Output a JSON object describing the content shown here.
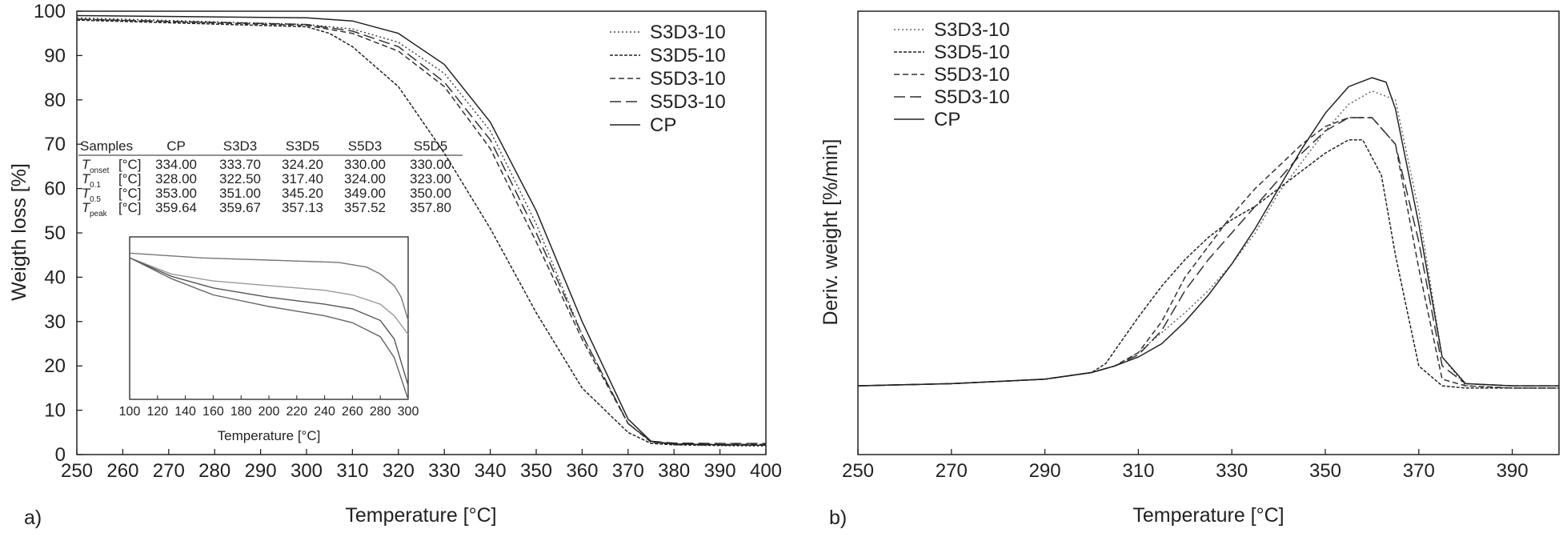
{
  "chart_data": [
    {
      "panel_label": "a)",
      "type": "line",
      "xlabel": "Temperature [°C]",
      "ylabel": "Weigth loss [%]",
      "xlim": [
        250,
        400
      ],
      "ylim": [
        0,
        100
      ],
      "xticks": [
        250,
        260,
        270,
        280,
        290,
        300,
        310,
        320,
        330,
        340,
        350,
        360,
        370,
        380,
        390,
        400
      ],
      "yticks": [
        0,
        10,
        20,
        30,
        40,
        50,
        60,
        70,
        80,
        90,
        100
      ],
      "legend": {
        "placement": "top-right"
      },
      "series": [
        {
          "name": "S3D3-10",
          "style": "dotted",
          "color": "#444444",
          "x": [
            250,
            300,
            310,
            320,
            330,
            340,
            350,
            360,
            370,
            375,
            380,
            390,
            400
          ],
          "y": [
            98.5,
            97,
            96,
            93,
            86,
            73,
            52,
            27,
            7,
            2.8,
            2.2,
            2.0,
            1.9
          ]
        },
        {
          "name": "S3D5-10",
          "style": "dense-dash",
          "color": "#222222",
          "x": [
            250,
            300,
            305,
            310,
            320,
            330,
            340,
            350,
            360,
            370,
            375,
            380,
            390,
            400
          ],
          "y": [
            98,
            96.5,
            95,
            92,
            83,
            68,
            51,
            32,
            15,
            5,
            2.5,
            2.2,
            2.1,
            2.1
          ]
        },
        {
          "name": "S5D3-10",
          "style": "short-dash",
          "color": "#333333",
          "x": [
            250,
            300,
            310,
            320,
            330,
            340,
            350,
            360,
            370,
            375,
            380,
            390,
            400
          ],
          "y": [
            98.2,
            96.8,
            95,
            91,
            83,
            69,
            48,
            26,
            7,
            2.8,
            2.4,
            2.3,
            2.3
          ]
        },
        {
          "name": "S5D3-10",
          "style": "long-dash",
          "color": "#333333",
          "x": [
            250,
            300,
            310,
            320,
            330,
            340,
            350,
            360,
            370,
            375,
            380,
            390,
            400
          ],
          "y": [
            98.2,
            97,
            95.5,
            92,
            84,
            71,
            50,
            27,
            7,
            3,
            2.6,
            2.5,
            2.5
          ]
        },
        {
          "name": "CP",
          "style": "solid",
          "color": "#222222",
          "x": [
            250,
            300,
            310,
            320,
            330,
            340,
            350,
            360,
            370,
            375,
            380,
            390,
            400
          ],
          "y": [
            99,
            98.5,
            97.8,
            95,
            88,
            75,
            55,
            30,
            8,
            3,
            2.4,
            2.2,
            2.1
          ]
        }
      ],
      "table": {
        "headers": [
          "Samples",
          "CP",
          "S3D3",
          "S3D5",
          "S5D3",
          "S5D5"
        ],
        "rows": [
          {
            "symbol": "T",
            "sub": "onset",
            "unit": "[°C]",
            "values": [
              "334.00",
              "333.70",
              "324.20",
              "330.00",
              "330.00"
            ]
          },
          {
            "symbol": "T",
            "sub": "0.1",
            "unit": "[°C]",
            "values": [
              "328.00",
              "322.50",
              "317.40",
              "324.00",
              "323.00"
            ]
          },
          {
            "symbol": "T",
            "sub": "0.5",
            "unit": "[°C]",
            "values": [
              "353.00",
              "351.00",
              "345.20",
              "349.00",
              "350.00"
            ]
          },
          {
            "symbol": "T",
            "sub": "peak",
            "unit": "[°C]",
            "values": [
              "359.64",
              "359.67",
              "357.13",
              "357.52",
              "357.80"
            ]
          }
        ]
      },
      "inset": {
        "xlabel": "Temperature [°C]",
        "xlim": [
          100,
          300
        ],
        "xticks": [
          100,
          120,
          140,
          160,
          180,
          200,
          220,
          240,
          260,
          280,
          300
        ],
        "ylim": [
          15,
          50
        ],
        "series": [
          {
            "style": "solid",
            "color": "#777777",
            "x": [
              100,
              150,
              200,
              250,
              270,
              280,
              290,
              295,
              300
            ],
            "y": [
              46.5,
              45.5,
              45,
              44.5,
              43.5,
              42,
              39.5,
              37,
              32
            ]
          },
          {
            "style": "solid",
            "color": "#999999",
            "x": [
              100,
              130,
              160,
              200,
              240,
              260,
              280,
              290,
              300
            ],
            "y": [
              45.5,
              42,
              40.5,
              39.5,
              38.5,
              37.5,
              35.5,
              33,
              29
            ]
          },
          {
            "style": "solid",
            "color": "#555555",
            "x": [
              100,
              130,
              160,
              200,
              240,
              260,
              280,
              290,
              300
            ],
            "y": [
              45.5,
              41.5,
              39,
              37,
              35.5,
              34.5,
              32,
              28,
              18
            ]
          },
          {
            "style": "solid",
            "color": "#666666",
            "x": [
              100,
              130,
              160,
              200,
              240,
              260,
              280,
              290,
              300
            ],
            "y": [
              45.5,
              41,
              37.5,
              35,
              33,
              31.5,
              28.5,
              24,
              15
            ]
          }
        ]
      }
    },
    {
      "panel_label": "b)",
      "type": "line",
      "xlabel": "Temperature [°C]",
      "ylabel": "Deriv. weight [%/min]",
      "xlim": [
        250,
        400
      ],
      "ylim": [
        0,
        1
      ],
      "xticks": [
        250,
        270,
        290,
        310,
        330,
        350,
        370,
        390
      ],
      "legend": {
        "placement": "top-left"
      },
      "series": [
        {
          "name": "S3D3-10",
          "style": "dotted",
          "color": "#666666",
          "x": [
            250,
            270,
            290,
            300,
            305,
            310,
            315,
            320,
            325,
            330,
            335,
            340,
            345,
            350,
            355,
            360,
            365,
            370,
            375,
            380,
            390,
            400
          ],
          "y": [
            0.155,
            0.16,
            0.17,
            0.185,
            0.2,
            0.23,
            0.275,
            0.32,
            0.37,
            0.43,
            0.5,
            0.59,
            0.66,
            0.73,
            0.79,
            0.82,
            0.8,
            0.55,
            0.22,
            0.155,
            0.15,
            0.15
          ]
        },
        {
          "name": "S3D5-10",
          "style": "dense-dash",
          "color": "#222222",
          "x": [
            250,
            270,
            290,
            300,
            303,
            306,
            310,
            315,
            320,
            325,
            330,
            335,
            340,
            345,
            350,
            355,
            358,
            362,
            365,
            370,
            375,
            380,
            390,
            400
          ],
          "y": [
            0.155,
            0.16,
            0.17,
            0.185,
            0.205,
            0.25,
            0.31,
            0.38,
            0.44,
            0.49,
            0.53,
            0.56,
            0.6,
            0.64,
            0.68,
            0.71,
            0.71,
            0.63,
            0.45,
            0.2,
            0.155,
            0.15,
            0.15,
            0.15
          ]
        },
        {
          "name": "S5D3-10",
          "style": "short-dash",
          "color": "#333333",
          "x": [
            250,
            270,
            290,
            300,
            305,
            310,
            315,
            320,
            325,
            330,
            335,
            340,
            345,
            350,
            355,
            360,
            365,
            370,
            375,
            380,
            390,
            400
          ],
          "y": [
            0.155,
            0.16,
            0.17,
            0.185,
            0.2,
            0.23,
            0.3,
            0.4,
            0.47,
            0.54,
            0.6,
            0.65,
            0.7,
            0.74,
            0.76,
            0.76,
            0.7,
            0.42,
            0.17,
            0.155,
            0.15,
            0.15
          ]
        },
        {
          "name": "S5D3-10",
          "style": "long-dash",
          "color": "#333333",
          "x": [
            250,
            270,
            290,
            300,
            305,
            310,
            315,
            320,
            325,
            330,
            335,
            340,
            345,
            350,
            355,
            360,
            365,
            370,
            375,
            380,
            390,
            400
          ],
          "y": [
            0.155,
            0.16,
            0.17,
            0.185,
            0.2,
            0.225,
            0.28,
            0.37,
            0.44,
            0.5,
            0.56,
            0.62,
            0.68,
            0.73,
            0.76,
            0.76,
            0.7,
            0.48,
            0.2,
            0.16,
            0.155,
            0.155
          ]
        },
        {
          "name": "CP",
          "style": "solid",
          "color": "#222222",
          "x": [
            250,
            270,
            290,
            300,
            305,
            310,
            315,
            320,
            325,
            330,
            335,
            340,
            345,
            350,
            355,
            360,
            363,
            365,
            370,
            375,
            380,
            390,
            400
          ],
          "y": [
            0.155,
            0.16,
            0.17,
            0.185,
            0.2,
            0.22,
            0.25,
            0.3,
            0.36,
            0.43,
            0.51,
            0.6,
            0.69,
            0.77,
            0.83,
            0.85,
            0.84,
            0.78,
            0.52,
            0.22,
            0.16,
            0.155,
            0.155
          ]
        }
      ]
    }
  ]
}
